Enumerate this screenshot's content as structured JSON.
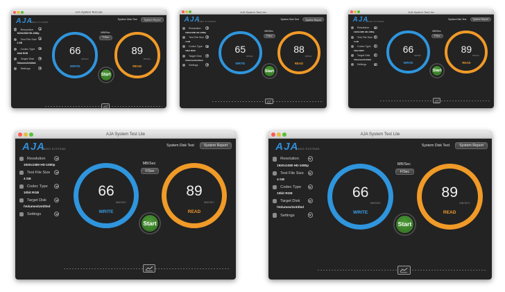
{
  "windows": [
    {
      "title": "AJA System Test Lite",
      "logo": "AJA",
      "logo_sub": "VIDEO SYSTEMS",
      "buttons": {
        "disk_test": "System Disk Test",
        "report": "System Report"
      },
      "settings": {
        "resolution": {
          "label": "Resolution",
          "value": "1920x1080 HD-1080p"
        },
        "file_size": {
          "label": "Test File Size",
          "value": "4 GB"
        },
        "codec": {
          "label": "Codec Type",
          "value": "10bit RGB"
        },
        "disk": {
          "label": "Target Disk",
          "value": "/Volumes/Untitled"
        },
        "settings": {
          "label": "Settings"
        }
      },
      "units_label": "MB/Sec",
      "units_select": "F/Sec",
      "write": {
        "value": "66",
        "unit": "MB/SEC",
        "label": "WRITE"
      },
      "read": {
        "value": "89",
        "unit": "MB/SEC",
        "label": "READ"
      },
      "start": "Start"
    },
    {
      "title": "AJA System Test Lite",
      "logo": "AJA",
      "logo_sub": "VIDEO SYSTEMS",
      "buttons": {
        "disk_test": "System Disk Test",
        "report": "System Report"
      },
      "settings": {
        "resolution": {
          "label": "Resolution",
          "value": "1920x1080 HD-1080p"
        },
        "file_size": {
          "label": "Test File Size",
          "value": "4 GB"
        },
        "codec": {
          "label": "Codec Type",
          "value": "10bit RGB"
        },
        "disk": {
          "label": "Target Disk",
          "value": "/Volumes/Untitled"
        },
        "settings": {
          "label": "Settings"
        }
      },
      "units_label": "MB/Sec",
      "units_select": "F/Sec",
      "write": {
        "value": "65",
        "unit": "MB/SEC",
        "label": "WRITE"
      },
      "read": {
        "value": "88",
        "unit": "MB/SEC",
        "label": "READ"
      },
      "start": "Start"
    },
    {
      "title": "AJA System Test Lite",
      "logo": "AJA",
      "logo_sub": "VIDEO SYSTEMS",
      "buttons": {
        "disk_test": "System Disk Test",
        "report": "System Report"
      },
      "settings": {
        "resolution": {
          "label": "Resolution",
          "value": "1920x1080 HD-1080p"
        },
        "file_size": {
          "label": "Test File Size",
          "value": "4 GB"
        },
        "codec": {
          "label": "Codec Type",
          "value": "10bit RGB"
        },
        "disk": {
          "label": "Target Disk",
          "value": "/Volumes/Untitled"
        },
        "settings": {
          "label": "Settings"
        }
      },
      "units_label": "MB/Sec",
      "units_select": "F/Sec",
      "write": {
        "value": "66",
        "unit": "MB/SEC",
        "label": "WRITE"
      },
      "read": {
        "value": "89",
        "unit": "MB/SEC",
        "label": "READ"
      },
      "start": "Start"
    },
    {
      "title": "AJA System Test Lite",
      "logo": "AJA",
      "logo_sub": "VIDEO SYSTEMS",
      "buttons": {
        "disk_test": "System Disk Test",
        "report": "System Report"
      },
      "settings": {
        "resolution": {
          "label": "Resolution",
          "value": "1920x1080 HD-1080p"
        },
        "file_size": {
          "label": "Test File Size",
          "value": "4 GB"
        },
        "codec": {
          "label": "Codec Type",
          "value": "10bit RGB"
        },
        "disk": {
          "label": "Target Disk",
          "value": "/Volumes/Untitled"
        },
        "settings": {
          "label": "Settings"
        }
      },
      "units_label": "MB/Sec",
      "units_select": "F/Sec",
      "write": {
        "value": "66",
        "unit": "MB/SEC",
        "label": "WRITE"
      },
      "read": {
        "value": "89",
        "unit": "MB/SEC",
        "label": "READ"
      },
      "start": "Start"
    },
    {
      "title": "AJA System Test Lite",
      "logo": "AJA",
      "logo_sub": "VIDEO SYSTEMS",
      "buttons": {
        "disk_test": "System Disk Test",
        "report": "System Report"
      },
      "settings": {
        "resolution": {
          "label": "Resolution",
          "value": "1920x1080 HD-1080p"
        },
        "file_size": {
          "label": "Test File Size",
          "value": "4 GB"
        },
        "codec": {
          "label": "Codec Type",
          "value": "10bit RGB"
        },
        "disk": {
          "label": "Target Disk",
          "value": "/Volumes/Untitled"
        },
        "settings": {
          "label": "Settings"
        }
      },
      "units_label": "MB/Sec",
      "units_select": "F/Sec",
      "write": {
        "value": "66",
        "unit": "MB/SEC",
        "label": "WRITE"
      },
      "read": {
        "value": "89",
        "unit": "MB/SEC",
        "label": "READ"
      },
      "start": "Start"
    }
  ]
}
